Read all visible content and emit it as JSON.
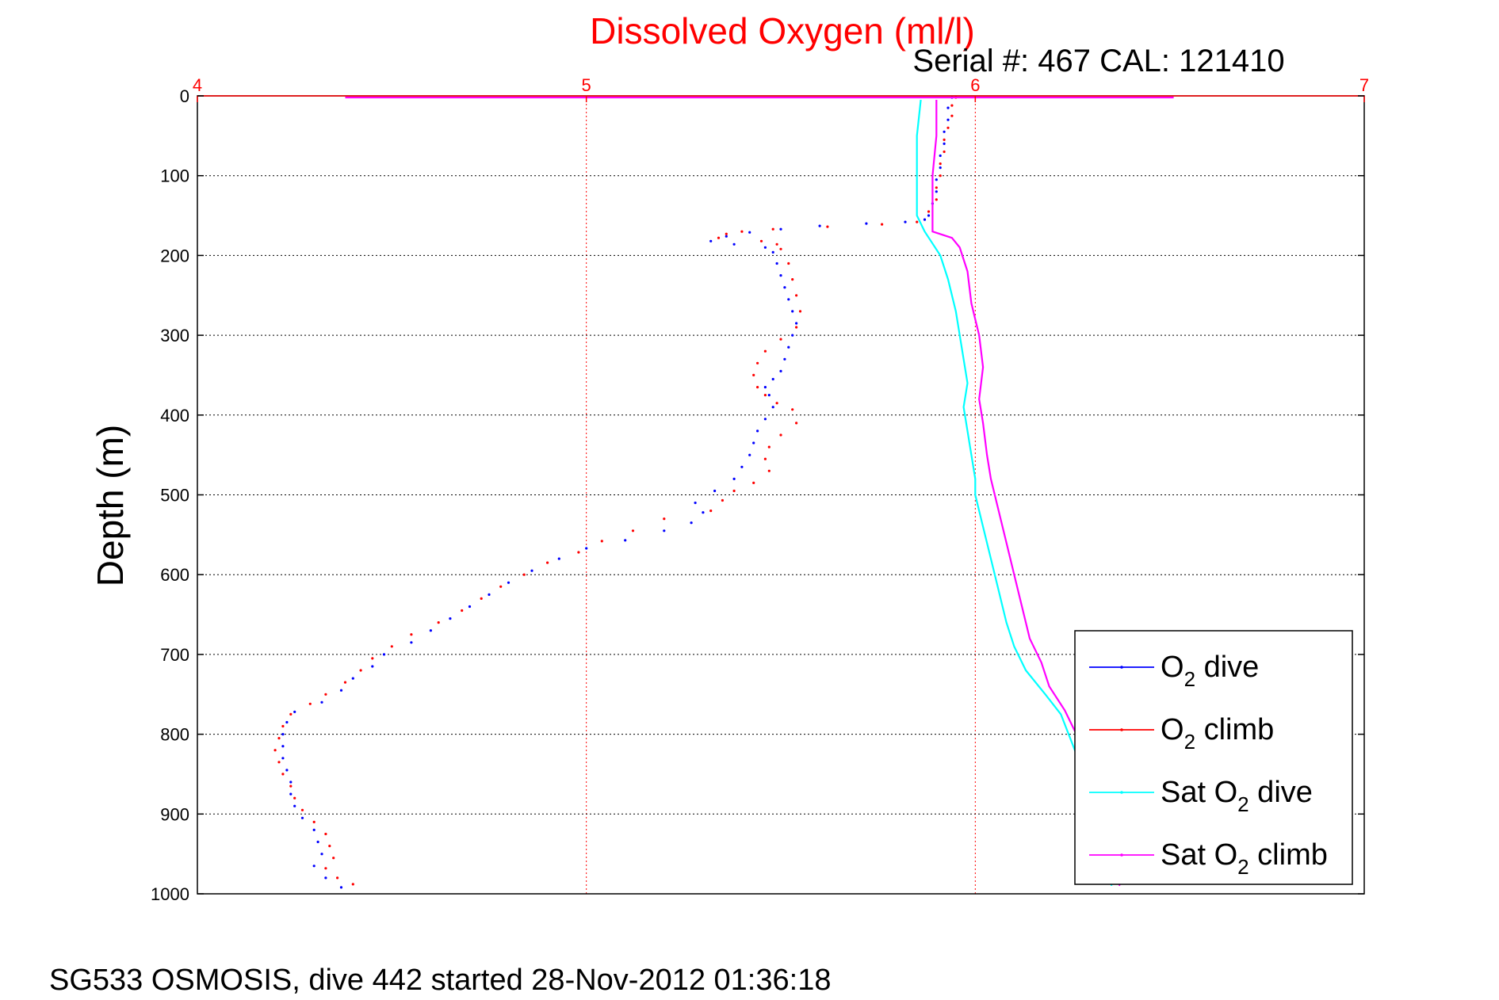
{
  "chart_data": {
    "type": "scatter",
    "title": "Dissolved Oxygen (ml/l)",
    "subtitle": "Serial #: 467  CAL: 121410",
    "ylabel": "Depth (m)",
    "xlabel": "",
    "caption": "SG533 OSMOSIS, dive 442 started 28-Nov-2012 01:36:18",
    "xlim": [
      4,
      7
    ],
    "ylim": [
      0,
      1000
    ],
    "y_reversed": true,
    "x_axis_position": "top",
    "x_ticks": [
      "4",
      "5",
      "6",
      "7"
    ],
    "y_ticks": [
      "0",
      "100",
      "200",
      "300",
      "400",
      "500",
      "600",
      "700",
      "800",
      "900",
      "1000"
    ],
    "grid": true,
    "legend_position": "bottom-right",
    "series": [
      {
        "name": "O2 dive",
        "legend_main": "O",
        "legend_sub": "2",
        "legend_rest": " dive",
        "color": "#0000ff",
        "style": "dots",
        "points": [
          [
            5.94,
            2
          ],
          [
            5.93,
            15
          ],
          [
            5.93,
            30
          ],
          [
            5.92,
            45
          ],
          [
            5.92,
            60
          ],
          [
            5.91,
            75
          ],
          [
            5.91,
            90
          ],
          [
            5.9,
            105
          ],
          [
            5.9,
            120
          ],
          [
            5.89,
            135
          ],
          [
            5.88,
            150
          ],
          [
            5.87,
            155
          ],
          [
            5.82,
            158
          ],
          [
            5.72,
            160
          ],
          [
            5.6,
            163
          ],
          [
            5.5,
            167
          ],
          [
            5.42,
            171
          ],
          [
            5.36,
            176
          ],
          [
            5.32,
            182
          ],
          [
            5.38,
            186
          ],
          [
            5.46,
            190
          ],
          [
            5.48,
            196
          ],
          [
            5.49,
            210
          ],
          [
            5.5,
            225
          ],
          [
            5.51,
            240
          ],
          [
            5.52,
            255
          ],
          [
            5.53,
            270
          ],
          [
            5.54,
            285
          ],
          [
            5.53,
            300
          ],
          [
            5.52,
            315
          ],
          [
            5.51,
            330
          ],
          [
            5.5,
            345
          ],
          [
            5.48,
            355
          ],
          [
            5.46,
            365
          ],
          [
            5.47,
            375
          ],
          [
            5.48,
            390
          ],
          [
            5.46,
            405
          ],
          [
            5.44,
            420
          ],
          [
            5.43,
            435
          ],
          [
            5.42,
            450
          ],
          [
            5.4,
            465
          ],
          [
            5.38,
            480
          ],
          [
            5.33,
            495
          ],
          [
            5.28,
            510
          ],
          [
            5.3,
            522
          ],
          [
            5.27,
            535
          ],
          [
            5.2,
            545
          ],
          [
            5.1,
            557
          ],
          [
            5.0,
            567
          ],
          [
            4.93,
            580
          ],
          [
            4.86,
            595
          ],
          [
            4.8,
            610
          ],
          [
            4.75,
            625
          ],
          [
            4.7,
            640
          ],
          [
            4.65,
            655
          ],
          [
            4.6,
            670
          ],
          [
            4.55,
            685
          ],
          [
            4.48,
            700
          ],
          [
            4.45,
            715
          ],
          [
            4.4,
            730
          ],
          [
            4.37,
            745
          ],
          [
            4.32,
            760
          ],
          [
            4.25,
            772
          ],
          [
            4.23,
            785
          ],
          [
            4.22,
            800
          ],
          [
            4.22,
            815
          ],
          [
            4.22,
            830
          ],
          [
            4.23,
            845
          ],
          [
            4.24,
            860
          ],
          [
            4.24,
            875
          ],
          [
            4.25,
            890
          ],
          [
            4.27,
            905
          ],
          [
            4.3,
            920
          ],
          [
            4.31,
            935
          ],
          [
            4.32,
            950
          ],
          [
            4.3,
            965
          ],
          [
            4.33,
            980
          ],
          [
            4.37,
            992
          ]
        ]
      },
      {
        "name": "O2 climb",
        "legend_main": "O",
        "legend_sub": "2",
        "legend_rest": " climb",
        "color": "#ff0000",
        "style": "dots",
        "points": [
          [
            5.95,
            2
          ],
          [
            5.94,
            12
          ],
          [
            5.94,
            25
          ],
          [
            5.93,
            40
          ],
          [
            5.92,
            55
          ],
          [
            5.92,
            70
          ],
          [
            5.91,
            85
          ],
          [
            5.91,
            100
          ],
          [
            5.9,
            115
          ],
          [
            5.9,
            130
          ],
          [
            5.88,
            145
          ],
          [
            5.85,
            158
          ],
          [
            5.76,
            161
          ],
          [
            5.62,
            164
          ],
          [
            5.48,
            167
          ],
          [
            5.4,
            170
          ],
          [
            5.36,
            173
          ],
          [
            5.34,
            178
          ],
          [
            5.45,
            182
          ],
          [
            5.49,
            186
          ],
          [
            5.5,
            192
          ],
          [
            5.52,
            210
          ],
          [
            5.53,
            230
          ],
          [
            5.54,
            250
          ],
          [
            5.55,
            270
          ],
          [
            5.54,
            290
          ],
          [
            5.5,
            305
          ],
          [
            5.46,
            320
          ],
          [
            5.44,
            335
          ],
          [
            5.43,
            350
          ],
          [
            5.44,
            365
          ],
          [
            5.46,
            375
          ],
          [
            5.49,
            385
          ],
          [
            5.53,
            393
          ],
          [
            5.54,
            410
          ],
          [
            5.5,
            425
          ],
          [
            5.47,
            440
          ],
          [
            5.46,
            455
          ],
          [
            5.47,
            470
          ],
          [
            5.43,
            485
          ],
          [
            5.38,
            495
          ],
          [
            5.35,
            507
          ],
          [
            5.32,
            520
          ],
          [
            5.2,
            530
          ],
          [
            5.12,
            545
          ],
          [
            5.04,
            558
          ],
          [
            4.98,
            572
          ],
          [
            4.9,
            585
          ],
          [
            4.84,
            600
          ],
          [
            4.78,
            615
          ],
          [
            4.73,
            630
          ],
          [
            4.68,
            645
          ],
          [
            4.62,
            660
          ],
          [
            4.55,
            675
          ],
          [
            4.5,
            690
          ],
          [
            4.45,
            705
          ],
          [
            4.42,
            720
          ],
          [
            4.38,
            735
          ],
          [
            4.33,
            750
          ],
          [
            4.29,
            762
          ],
          [
            4.24,
            775
          ],
          [
            4.22,
            790
          ],
          [
            4.21,
            805
          ],
          [
            4.2,
            820
          ],
          [
            4.21,
            835
          ],
          [
            4.22,
            850
          ],
          [
            4.24,
            865
          ],
          [
            4.25,
            880
          ],
          [
            4.27,
            895
          ],
          [
            4.3,
            910
          ],
          [
            4.33,
            925
          ],
          [
            4.34,
            940
          ],
          [
            4.35,
            955
          ],
          [
            4.33,
            968
          ],
          [
            4.36,
            980
          ],
          [
            4.4,
            988
          ]
        ]
      },
      {
        "name": "Sat O2 dive",
        "legend_main": "Sat O",
        "legend_sub": "2",
        "legend_rest": " dive",
        "color": "#00ffff",
        "style": "line",
        "points": [
          [
            5.86,
            5
          ],
          [
            5.85,
            50
          ],
          [
            5.85,
            100
          ],
          [
            5.85,
            150
          ],
          [
            5.87,
            170
          ],
          [
            5.89,
            185
          ],
          [
            5.91,
            200
          ],
          [
            5.93,
            230
          ],
          [
            5.95,
            270
          ],
          [
            5.96,
            300
          ],
          [
            5.97,
            330
          ],
          [
            5.98,
            360
          ],
          [
            5.97,
            390
          ],
          [
            5.98,
            420
          ],
          [
            5.99,
            450
          ],
          [
            6.0,
            480
          ],
          [
            6.0,
            500
          ],
          [
            6.02,
            540
          ],
          [
            6.04,
            580
          ],
          [
            6.06,
            620
          ],
          [
            6.08,
            660
          ],
          [
            6.1,
            690
          ],
          [
            6.13,
            720
          ],
          [
            6.18,
            750
          ],
          [
            6.22,
            775
          ],
          [
            6.24,
            800
          ],
          [
            6.26,
            825
          ],
          [
            6.28,
            850
          ],
          [
            6.31,
            880
          ],
          [
            6.33,
            910
          ],
          [
            6.34,
            940
          ],
          [
            6.35,
            965
          ],
          [
            6.35,
            990
          ]
        ]
      },
      {
        "name": "Sat O2 climb",
        "legend_main": "Sat O",
        "legend_sub": "2",
        "legend_rest": " climb",
        "color": "#ff00ff",
        "style": "line",
        "points": [
          [
            5.9,
            5
          ],
          [
            5.9,
            50
          ],
          [
            5.89,
            100
          ],
          [
            5.89,
            150
          ],
          [
            5.89,
            170
          ],
          [
            5.94,
            178
          ],
          [
            5.96,
            190
          ],
          [
            5.98,
            220
          ],
          [
            5.99,
            260
          ],
          [
            6.01,
            300
          ],
          [
            6.02,
            340
          ],
          [
            6.01,
            380
          ],
          [
            6.02,
            410
          ],
          [
            6.03,
            450
          ],
          [
            6.04,
            480
          ],
          [
            6.06,
            520
          ],
          [
            6.08,
            560
          ],
          [
            6.1,
            600
          ],
          [
            6.12,
            640
          ],
          [
            6.14,
            680
          ],
          [
            6.17,
            710
          ],
          [
            6.19,
            740
          ],
          [
            6.23,
            770
          ],
          [
            6.26,
            800
          ],
          [
            6.29,
            830
          ],
          [
            6.31,
            860
          ],
          [
            6.34,
            890
          ],
          [
            6.36,
            920
          ],
          [
            6.37,
            950
          ],
          [
            6.38,
            975
          ],
          [
            6.37,
            990
          ]
        ]
      },
      {
        "name": "surface",
        "color": "#ff00ff",
        "style": "line",
        "points": [
          [
            4.38,
            2
          ],
          [
            6.51,
            2
          ]
        ]
      }
    ]
  }
}
